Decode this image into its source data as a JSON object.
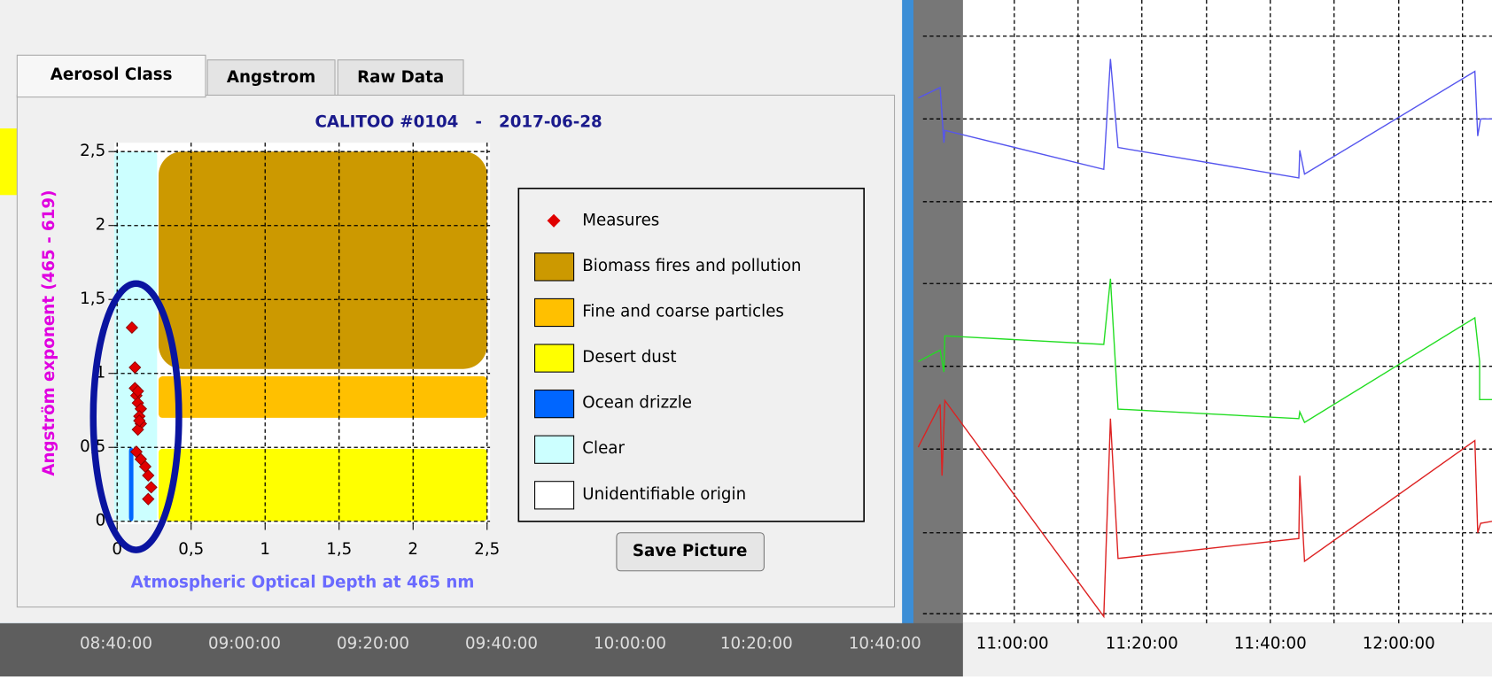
{
  "tabs": [
    "Aerosol Class",
    "Angstrom",
    "Raw Data"
  ],
  "button": "Save Picture",
  "background_times": [
    "08:40:00",
    "09:00:00",
    "09:20:00",
    "09:40:00",
    "10:00:00",
    "10:20:00",
    "10:40:00",
    "11:00:00",
    "11:20:00",
    "11:40:00",
    "12:00:00"
  ],
  "chart_data": {
    "type": "scatter",
    "title": "CALITOO #0104   -   2017-06-28",
    "x_label": "Atmospheric Optical Depth at 465 nm",
    "y_label": "Angström exponent (465 - 619)",
    "xlim": [
      -0.02,
      2.52
    ],
    "ylim": [
      -0.02,
      2.56
    ],
    "xticks": [
      0,
      {
        "value": 0.5,
        "label": "0,5"
      },
      1,
      {
        "value": 1.5,
        "label": "1,5"
      },
      2,
      {
        "value": 2.5,
        "label": "2,5"
      }
    ],
    "yticks": [
      0,
      {
        "value": 0.5,
        "label": "0,5"
      },
      1,
      {
        "value": 1.5,
        "label": "1,5"
      },
      2,
      {
        "value": 2.5,
        "label": "2,5"
      }
    ],
    "grid": true,
    "series": [
      {
        "name": "Measures",
        "color": "#e00000",
        "x": [
          0.1,
          0.12,
          0.12,
          0.13,
          0.14,
          0.16,
          0.15,
          0.16,
          0.14,
          0.13,
          0.16,
          0.19,
          0.21,
          0.23,
          0.21,
          0.14,
          0.15
        ],
        "values": [
          1.31,
          1.04,
          0.9,
          0.85,
          0.8,
          0.76,
          0.71,
          0.66,
          0.62,
          0.47,
          0.42,
          0.37,
          0.31,
          0.23,
          0.15,
          0.88,
          0.68
        ]
      }
    ],
    "regions": [
      {
        "name": "Biomass fires and pollution",
        "color": "#cc9900",
        "x_range": [
          0.28,
          2.5
        ],
        "y_range": [
          1.03,
          2.5
        ]
      },
      {
        "name": "Fine and coarse particles",
        "color": "#ffc000",
        "x_range": [
          0.28,
          2.5
        ],
        "y_range": [
          0.7,
          0.98
        ]
      },
      {
        "name": "Desert dust",
        "color": "#ffff00",
        "x_range": [
          0.28,
          2.5
        ],
        "y_range": [
          0,
          0.49
        ]
      },
      {
        "name": "Ocean drizzle",
        "color": "#0066ff",
        "x_range": [
          0.08,
          0.11
        ],
        "y_range": [
          0,
          0.5
        ]
      },
      {
        "name": "Clear",
        "color": "#ccffff",
        "x_range": [
          -0.02,
          0.27
        ],
        "y_range": [
          0,
          2.5
        ]
      },
      {
        "name": "Unidentifiable origin",
        "color": "#ffffff"
      }
    ]
  }
}
